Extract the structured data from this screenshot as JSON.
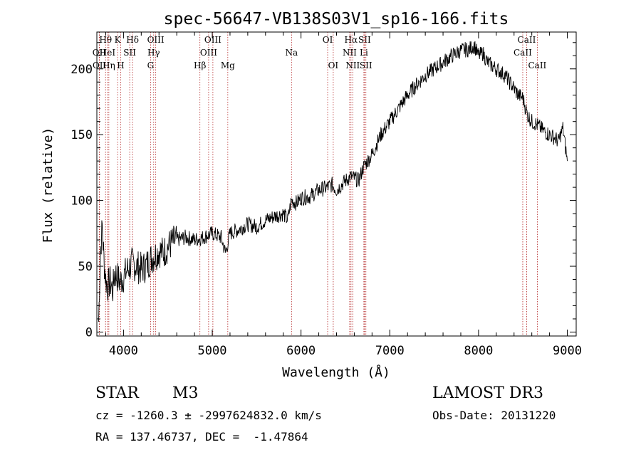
{
  "chart_data": {
    "type": "line",
    "title": "spec-56647-VB138S03V1_sp16-166.fits",
    "xlabel": "Wavelength (Å)",
    "ylabel": "Flux (relative)",
    "xlim": [
      3700,
      9100
    ],
    "ylim": [
      -3,
      228
    ],
    "xticks": [
      4000,
      5000,
      6000,
      7000,
      8000,
      9000
    ],
    "yticks": [
      0,
      50,
      100,
      150,
      200
    ],
    "grid": false,
    "series": [
      {
        "name": "spectrum",
        "x": [
          3720,
          3740,
          3760,
          3780,
          3800,
          3820,
          3850,
          3880,
          3900,
          3930,
          3960,
          4000,
          4050,
          4100,
          4150,
          4200,
          4250,
          4300,
          4350,
          4400,
          4450,
          4500,
          4550,
          4600,
          4700,
          4800,
          4900,
          5000,
          5100,
          5150,
          5200,
          5300,
          5400,
          5500,
          5600,
          5700,
          5800,
          5850,
          5890,
          5950,
          6000,
          6100,
          6200,
          6300,
          6350,
          6400,
          6500,
          6560,
          6600,
          6650,
          6700,
          6800,
          6900,
          7000,
          7100,
          7200,
          7300,
          7400,
          7500,
          7600,
          7700,
          7800,
          7900,
          7950,
          8000,
          8050,
          8100,
          8200,
          8300,
          8400,
          8450,
          8500,
          8550,
          8600,
          8650,
          8700,
          8750,
          8800,
          8850,
          8900,
          8950,
          8980,
          9000
        ],
        "y": [
          8,
          60,
          80,
          55,
          40,
          35,
          38,
          32,
          45,
          42,
          38,
          42,
          48,
          52,
          50,
          48,
          50,
          55,
          58,
          62,
          60,
          65,
          68,
          70,
          72,
          70,
          72,
          75,
          72,
          60,
          75,
          78,
          82,
          80,
          85,
          88,
          90,
          85,
          100,
          98,
          102,
          103,
          108,
          110,
          112,
          108,
          115,
          118,
          117,
          115,
          125,
          135,
          150,
          160,
          170,
          180,
          188,
          195,
          200,
          205,
          210,
          214,
          215,
          218,
          210,
          212,
          205,
          200,
          195,
          185,
          180,
          178,
          165,
          160,
          158,
          155,
          152,
          150,
          148,
          145,
          155,
          140,
          130
        ]
      }
    ],
    "line_markers": [
      {
        "label": "Hθ",
        "x": 3798,
        "row": 0
      },
      {
        "label": "OII",
        "x": 3727,
        "row": 1
      },
      {
        "label": "OII",
        "x": 3729,
        "row": 2
      },
      {
        "label": "HeI",
        "x": 3820,
        "row": 1
      },
      {
        "label": "Hη",
        "x": 3835,
        "row": 2
      },
      {
        "label": "K",
        "x": 3934,
        "row": 0
      },
      {
        "label": "SII",
        "x": 4070,
        "row": 1
      },
      {
        "label": "H",
        "x": 3969,
        "row": 2
      },
      {
        "label": "Hδ",
        "x": 4102,
        "row": 0
      },
      {
        "label": "OIII",
        "x": 4363,
        "row": 0
      },
      {
        "label": "Hγ",
        "x": 4340,
        "row": 1
      },
      {
        "label": "G",
        "x": 4305,
        "row": 2
      },
      {
        "label": "Hβ",
        "x": 4861,
        "row": 2
      },
      {
        "label": "OIII",
        "x": 5007,
        "row": 0
      },
      {
        "label": "OIII",
        "x": 4959,
        "row": 1
      },
      {
        "label": "Mg",
        "x": 5175,
        "row": 2
      },
      {
        "label": "Na",
        "x": 5893,
        "row": 1
      },
      {
        "label": "OI",
        "x": 6300,
        "row": 0
      },
      {
        "label": "OI",
        "x": 6363,
        "row": 2
      },
      {
        "label": "Hα",
        "x": 6563,
        "row": 0
      },
      {
        "label": "SII",
        "x": 6716,
        "row": 0
      },
      {
        "label": "NII",
        "x": 6548,
        "row": 1
      },
      {
        "label": "Li",
        "x": 6708,
        "row": 1
      },
      {
        "label": "NII",
        "x": 6583,
        "row": 2
      },
      {
        "label": "SII",
        "x": 6731,
        "row": 2
      },
      {
        "label": "CaII",
        "x": 8542,
        "row": 0
      },
      {
        "label": "CaII",
        "x": 8498,
        "row": 1
      },
      {
        "label": "CaII",
        "x": 8662,
        "row": 2
      }
    ]
  },
  "info": {
    "class": "STAR",
    "subclass": "M3",
    "survey": "LAMOST DR3",
    "cz": "cz = -1260.3 ± -2997624832.0 km/s",
    "obs_date": "Obs-Date: 20131220",
    "coords": "RA = 137.46737, DEC =  -1.47864"
  },
  "colors": {
    "spectrum": "#000000",
    "marker": "#b22222",
    "axis": "#000000"
  }
}
